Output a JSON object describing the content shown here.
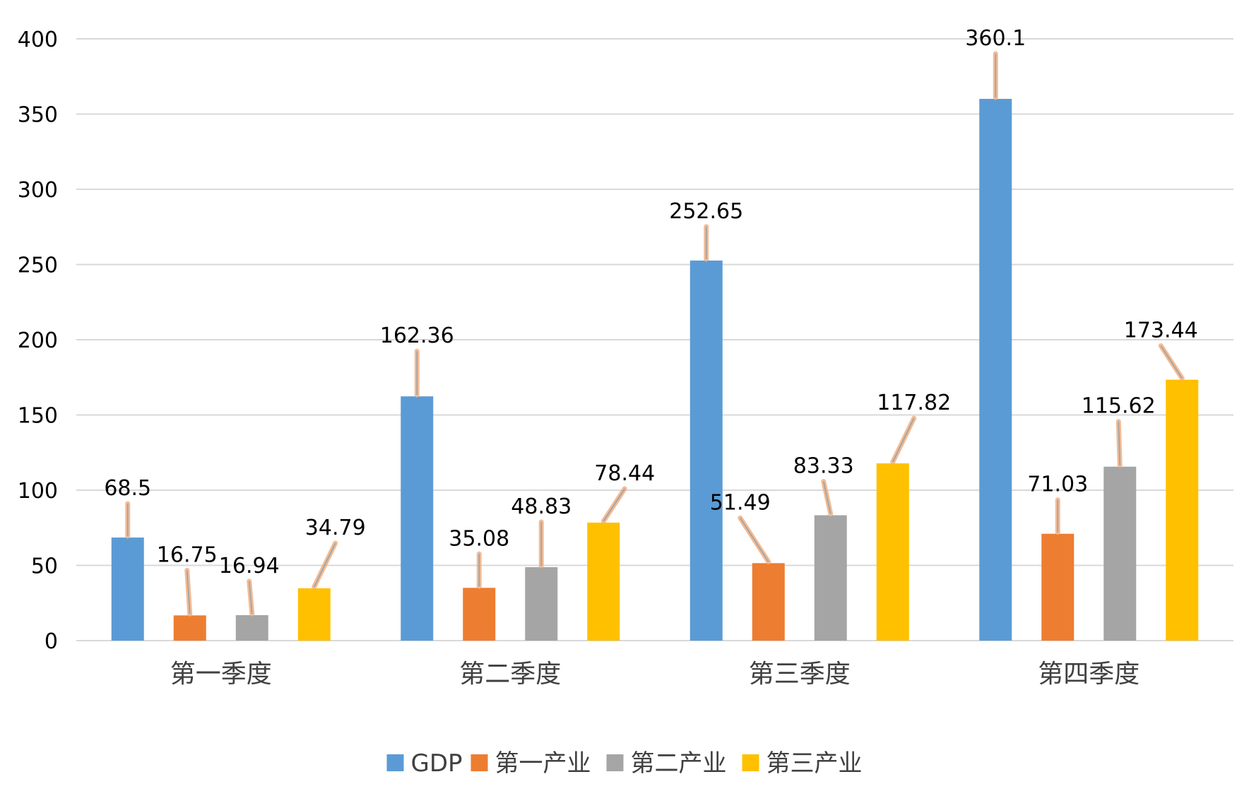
{
  "chart_data": {
    "type": "bar",
    "categories": [
      "第一季度",
      "第二季度",
      "第三季度",
      "第四季度"
    ],
    "series": [
      {
        "name": "GDP",
        "values": [
          68.5,
          162.36,
          252.65,
          360.1
        ],
        "color": "#5b9bd5"
      },
      {
        "name": "第一产业",
        "values": [
          16.75,
          35.08,
          51.49,
          71.03
        ],
        "color": "#ed7d31"
      },
      {
        "name": "第二产业",
        "values": [
          16.94,
          48.83,
          83.33,
          115.62
        ],
        "color": "#a5a5a5"
      },
      {
        "name": "第三产业",
        "values": [
          34.79,
          78.44,
          117.82,
          173.44
        ],
        "color": "#ffc000"
      }
    ],
    "data_labels": [
      [
        "68.5",
        "162.36",
        "252.65",
        "360.1"
      ],
      [
        "16.75",
        "35.08",
        "51.49",
        "71.03"
      ],
      [
        "16.94",
        "48.83",
        "83.33",
        "115.62"
      ],
      [
        "34.79",
        "78.44",
        "117.82",
        "173.44"
      ]
    ],
    "y_ticks": [
      "0",
      "50",
      "100",
      "150",
      "200",
      "250",
      "300",
      "350",
      "400"
    ],
    "ylim": [
      0,
      400
    ],
    "grid": true,
    "legend_position": "bottom",
    "title": "",
    "xlabel": "",
    "ylabel": ""
  }
}
